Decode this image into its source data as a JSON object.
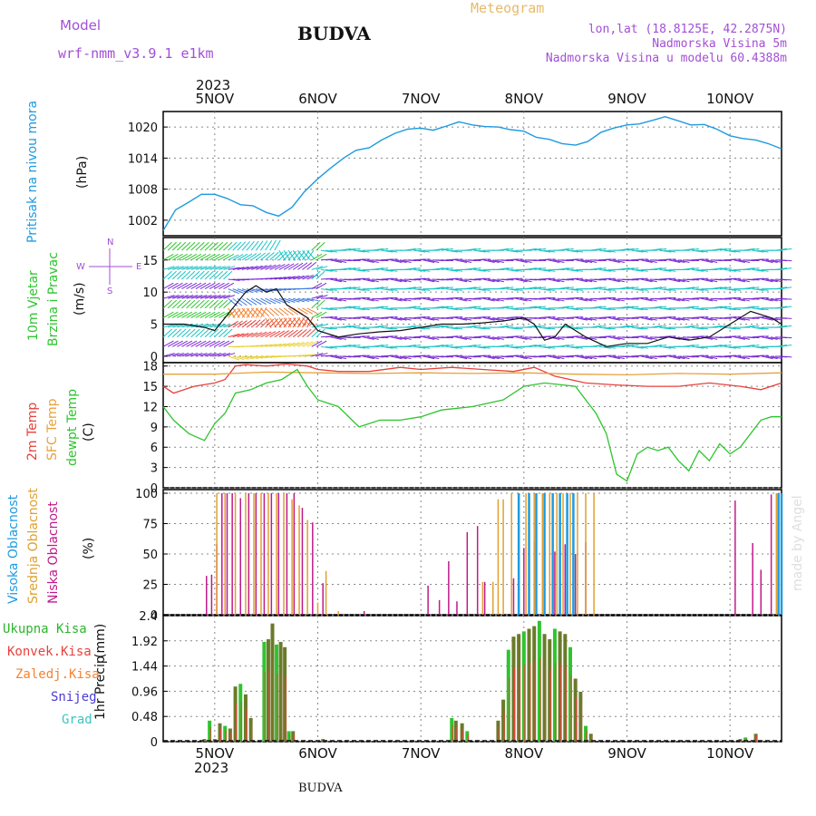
{
  "header": {
    "title": "BUDVA",
    "meteogram_label": "Meteogram",
    "model_label": "Model",
    "model_name": "wrf-nmm_v3.9.1 e1km",
    "lonlat": "lon,lat (18.8125E, 42.2875N)",
    "elevation": "Nadmorska Visina 5m",
    "model_elevation": "Nadmorska Visina u modelu 60.4388m",
    "year_top": "2023",
    "year_bottom": "2023",
    "footer": "BUDVA",
    "watermark": "made by Angel"
  },
  "legend": {
    "wind_compass": [
      "N",
      "E",
      "S",
      "W"
    ],
    "precip_entries": [
      {
        "label": "Ukupna Kisa",
        "color": "#2db52d"
      },
      {
        "label": "Konvek.Kisa",
        "color": "#e8413c"
      },
      {
        "label": "Zaledj.Kisa",
        "color": "#f58231"
      },
      {
        "label": "Snijeg",
        "color": "#4b3ad6"
      },
      {
        "label": "Grad",
        "color": "#3cc4c4"
      }
    ]
  },
  "colors": {
    "pressure": "#1e9be0",
    "temp2m": "#e8413c",
    "sfc": "#e8a13c",
    "dew": "#2fc42f",
    "cloud_high": "#1e9be0",
    "cloud_mid": "#e0a030",
    "cloud_low": "#c01a8a",
    "precip_total": "#6b7a2a",
    "precip_conv": "#e8413c",
    "precip_green": "#2fc42f"
  },
  "chart_data": [
    {
      "type": "line",
      "panel": "pressure",
      "ylabel_lines": [
        "Pritisak na nivou mora",
        "(hPa)"
      ],
      "y_ticks": [
        "1002",
        "1008",
        "1014",
        "1020"
      ],
      "ylim": [
        999,
        1023
      ],
      "x_ticks": [
        "5NOV",
        "6NOV",
        "7NOV",
        "8NOV",
        "9NOV",
        "10NOV"
      ],
      "x_tick_days": [
        1,
        2,
        3,
        4,
        5,
        6
      ],
      "xlim": [
        0.5,
        6.5
      ],
      "series": [
        {
          "name": "pressure",
          "x": [
            0.5,
            0.62,
            0.75,
            0.87,
            1.0,
            1.12,
            1.25,
            1.37,
            1.5,
            1.62,
            1.75,
            1.87,
            2.0,
            2.12,
            2.25,
            2.37,
            2.5,
            2.62,
            2.75,
            2.87,
            3.0,
            3.12,
            3.25,
            3.37,
            3.5,
            3.62,
            3.75,
            3.87,
            4.0,
            4.12,
            4.25,
            4.37,
            4.5,
            4.62,
            4.75,
            4.87,
            5.0,
            5.12,
            5.25,
            5.37,
            5.5,
            5.62,
            5.75,
            5.87,
            6.0,
            6.12,
            6.25,
            6.37,
            6.5
          ],
          "y": [
            1000,
            1004,
            1005.5,
            1007,
            1007,
            1006.2,
            1005,
            1004.8,
            1003.5,
            1002.8,
            1004.5,
            1007.5,
            1010,
            1012,
            1014,
            1015.5,
            1016,
            1017.5,
            1018.8,
            1019.6,
            1019.8,
            1019.4,
            1020.2,
            1021,
            1020.4,
            1020.1,
            1020,
            1019.5,
            1019.2,
            1018,
            1017.6,
            1016.8,
            1016.5,
            1017.2,
            1019,
            1019.8,
            1020.4,
            1020.6,
            1021.3,
            1022,
            1021.2,
            1020.4,
            1020.5,
            1019.6,
            1018.3,
            1017.8,
            1017.5,
            1016.8,
            1015.8
          ]
        }
      ]
    },
    {
      "type": "line",
      "panel": "wind",
      "ylabel_lines": [
        "10m Vjetar",
        "Brzina i Pravac",
        "(m/s)"
      ],
      "y_ticks": [
        "0",
        "5",
        "10",
        "15"
      ],
      "ylim": [
        -1,
        18.5
      ],
      "series": [
        {
          "name": "wind speed",
          "x": [
            0.5,
            0.7,
            0.9,
            1.0,
            1.1,
            1.2,
            1.3,
            1.4,
            1.5,
            1.6,
            1.7,
            1.8,
            1.9,
            2.0,
            2.2,
            2.4,
            2.6,
            2.8,
            3.0,
            3.2,
            3.4,
            3.6,
            3.8,
            4.0,
            4.1,
            4.2,
            4.3,
            4.4,
            4.5,
            4.6,
            4.8,
            5.0,
            5.2,
            5.4,
            5.6,
            5.8,
            6.0,
            6.2,
            6.4,
            6.5
          ],
          "y": [
            5,
            5,
            4.5,
            4,
            6,
            8,
            10,
            11,
            10,
            10.5,
            8,
            7,
            6,
            4,
            3,
            3.5,
            3.8,
            4,
            4.5,
            5,
            5,
            5.2,
            5.5,
            6,
            5,
            2.5,
            3,
            5,
            4,
            3,
            1.5,
            2,
            2,
            3,
            2.5,
            3,
            5,
            7,
            6,
            5
          ]
        }
      ]
    },
    {
      "type": "line",
      "panel": "temperature",
      "ylabel_lines": [
        "2m Temp",
        "SFC Temp",
        "dewpt Temp",
        "(C)"
      ],
      "y_ticks": [
        "0",
        "3",
        "6",
        "9",
        "12",
        "15",
        "18"
      ],
      "ylim": [
        0,
        18.5
      ],
      "series": [
        {
          "name": "2m Temp",
          "x": [
            0.5,
            0.6,
            0.8,
            1.0,
            1.1,
            1.2,
            1.3,
            1.5,
            1.7,
            1.9,
            2.0,
            2.2,
            2.5,
            2.8,
            3.0,
            3.3,
            3.6,
            3.9,
            4.1,
            4.3,
            4.6,
            4.9,
            5.2,
            5.5,
            5.8,
            6.1,
            6.3,
            6.5
          ],
          "y": [
            15,
            14,
            15,
            15.5,
            16,
            18,
            18.2,
            18,
            18.3,
            18,
            17.5,
            17.2,
            17.2,
            17.8,
            17.5,
            17.8,
            17.5,
            17.2,
            17.8,
            16.5,
            15.5,
            15.2,
            15,
            15,
            15.5,
            15,
            14.5,
            15.5
          ]
        },
        {
          "name": "SFC Temp",
          "x": [
            0.5,
            1.0,
            1.5,
            2.0,
            2.5,
            3.0,
            3.5,
            4.0,
            4.5,
            5.0,
            5.5,
            6.0,
            6.5
          ],
          "y": [
            16.8,
            16.8,
            17.1,
            17,
            16.9,
            17,
            16.9,
            17,
            16.8,
            16.7,
            16.9,
            16.8,
            17
          ]
        },
        {
          "name": "dewpt Temp",
          "x": [
            0.5,
            0.6,
            0.75,
            0.9,
            1.0,
            1.1,
            1.2,
            1.35,
            1.5,
            1.65,
            1.8,
            1.9,
            2.0,
            2.2,
            2.4,
            2.6,
            2.8,
            3.0,
            3.2,
            3.5,
            3.8,
            4.0,
            4.2,
            4.5,
            4.6,
            4.7,
            4.8,
            4.9,
            5.0,
            5.1,
            5.2,
            5.3,
            5.4,
            5.5,
            5.6,
            5.7,
            5.8,
            5.9,
            6.0,
            6.1,
            6.2,
            6.3,
            6.4,
            6.5
          ],
          "y": [
            12,
            10,
            8,
            7,
            9.5,
            11,
            14,
            14.5,
            15.5,
            16,
            17.5,
            15,
            13,
            12,
            9,
            10,
            10,
            10.5,
            11.5,
            12,
            13,
            15,
            15.5,
            15,
            13,
            11,
            8,
            2,
            1,
            5,
            6,
            5.5,
            6,
            4,
            2.5,
            5.5,
            4,
            6.5,
            5,
            6,
            8,
            10,
            10.5,
            10.5
          ]
        }
      ]
    },
    {
      "type": "bar",
      "panel": "clouds",
      "ylabel_lines": [
        "Visoka Oblacnost",
        "Srednja Oblacnost",
        "Niska Oblacnost",
        "(%)"
      ],
      "y_ticks": [
        "0",
        "25",
        "50",
        "75",
        "100"
      ],
      "ylim": [
        0,
        103
      ],
      "series": [
        {
          "name": "Niska Oblacnost",
          "x": [
            0.92,
            0.97,
            1.02,
            1.07,
            1.12,
            1.17,
            1.25,
            1.33,
            1.4,
            1.48,
            1.55,
            1.62,
            1.7,
            1.77,
            1.85,
            1.95,
            2.05,
            2.45,
            3.07,
            3.18,
            3.27,
            3.35,
            3.45,
            3.55,
            3.62,
            3.9,
            4.0,
            4.1,
            4.2,
            4.3,
            4.4,
            4.5,
            4.6,
            6.05,
            6.22,
            6.3,
            6.4
          ],
          "y": [
            32,
            33,
            58,
            100,
            100,
            100,
            96,
            100,
            100,
            100,
            100,
            100,
            100,
            100,
            88,
            76,
            26,
            3,
            24,
            12,
            44,
            11,
            68,
            73,
            27,
            30,
            55,
            60,
            48,
            52,
            58,
            50,
            60,
            94,
            59,
            37,
            99
          ]
        },
        {
          "name": "Srednja Oblacnost",
          "x": [
            1.02,
            1.1,
            1.2,
            1.3,
            1.38,
            1.45,
            1.52,
            1.6,
            1.67,
            1.75,
            1.82,
            1.9,
            2.0,
            2.08,
            2.2,
            3.6,
            3.7,
            3.75,
            3.8,
            3.88,
            3.95,
            4.02,
            4.1,
            4.18,
            4.25,
            4.32,
            4.38,
            4.45,
            4.52,
            4.6,
            4.68,
            6.45
          ],
          "y": [
            100,
            100,
            100,
            100,
            100,
            100,
            100,
            100,
            100,
            95,
            90,
            78,
            10,
            36,
            3,
            27,
            27,
            95,
            95,
            100,
            100,
            100,
            100,
            100,
            100,
            100,
            100,
            100,
            100,
            100,
            100,
            100
          ]
        },
        {
          "name": "Visoka Oblacnost",
          "x": [
            3.95,
            4.05,
            4.12,
            4.2,
            4.28,
            4.35,
            4.42,
            4.48,
            6.47,
            6.5
          ],
          "y": [
            100,
            100,
            100,
            100,
            100,
            100,
            100,
            100,
            100,
            100
          ]
        }
      ]
    },
    {
      "type": "bar",
      "panel": "precipitation",
      "ylabel_lines": [
        "1hr Precip",
        "(mm)"
      ],
      "y_ticks": [
        "0",
        "0.48",
        "0.96",
        "1.44",
        "1.92",
        "2.4"
      ],
      "ylim": [
        0,
        2.4
      ],
      "series": [
        {
          "name": "Ukupna Kisa",
          "x": [
            0.9,
            0.95,
            1.0,
            1.05,
            1.1,
            1.15,
            1.2,
            1.25,
            1.3,
            1.35,
            1.48,
            1.52,
            1.56,
            1.6,
            1.64,
            1.68,
            1.72,
            1.76,
            2.05,
            3.3,
            3.34,
            3.4,
            3.45,
            3.75,
            3.8,
            3.85,
            3.9,
            3.95,
            4.0,
            4.05,
            4.1,
            4.15,
            4.2,
            4.25,
            4.3,
            4.35,
            4.4,
            4.45,
            4.5,
            4.55,
            4.6,
            4.65,
            6.1,
            6.15,
            6.25
          ],
          "y": [
            0.05,
            0.4,
            0.05,
            0.35,
            0.3,
            0.25,
            1.05,
            1.1,
            0.9,
            0.45,
            1.9,
            1.95,
            2.25,
            1.85,
            1.9,
            1.8,
            0.2,
            0.2,
            0.05,
            0.45,
            0.4,
            0.35,
            0.2,
            0.4,
            0.8,
            1.75,
            2.0,
            2.05,
            2.1,
            2.15,
            2.2,
            2.3,
            2.05,
            1.95,
            2.15,
            2.1,
            2.05,
            1.8,
            1.2,
            0.95,
            0.3,
            0.15,
            0.05,
            0.08,
            0.15
          ]
        }
      ]
    }
  ]
}
